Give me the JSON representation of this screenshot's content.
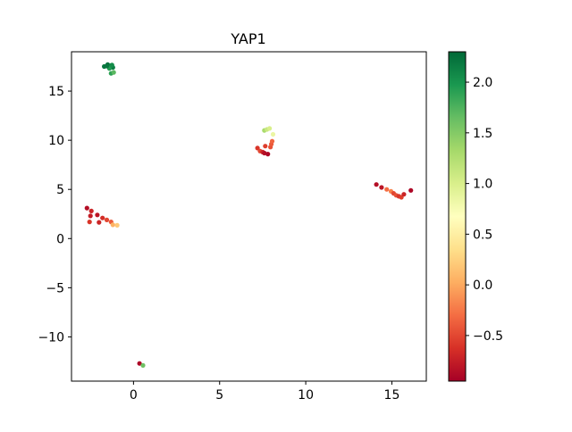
{
  "chart_data": {
    "type": "scatter",
    "title": "YAP1",
    "xlabel": "",
    "ylabel": "",
    "xlim": [
      -3.6,
      17.0
    ],
    "ylim": [
      -14.5,
      19.0
    ],
    "xticks": [
      0,
      5,
      10,
      15
    ],
    "yticks": [
      -10,
      -5,
      0,
      5,
      10,
      15
    ],
    "xtick_labels": [
      "0",
      "5",
      "10",
      "15"
    ],
    "ytick_labels": [
      "−10",
      "−5",
      "0",
      "5",
      "10",
      "15"
    ],
    "grid": false,
    "colorbar": {
      "colormap": "RdYlGn",
      "vmin": -0.95,
      "vmax": 2.3,
      "ticks": [
        -0.5,
        0.0,
        0.5,
        1.0,
        1.5,
        2.0
      ],
      "tick_labels": [
        "−0.5",
        "0.0",
        "0.5",
        "1.0",
        "1.5",
        "2.0"
      ]
    },
    "points": [
      {
        "x": -1.7,
        "y": 17.5,
        "v": 2.2
      },
      {
        "x": -1.5,
        "y": 17.7,
        "v": 2.25
      },
      {
        "x": -1.3,
        "y": 17.6,
        "v": 2.1
      },
      {
        "x": -1.2,
        "y": 17.4,
        "v": 2.15
      },
      {
        "x": -1.4,
        "y": 17.3,
        "v": 1.95
      },
      {
        "x": -1.3,
        "y": 16.8,
        "v": 1.9
      },
      {
        "x": -1.15,
        "y": 16.9,
        "v": 1.7
      },
      {
        "x": -1.25,
        "y": 17.65,
        "v": 2.05
      },
      {
        "x": -1.55,
        "y": 17.55,
        "v": 2.2
      },
      {
        "x": 7.6,
        "y": 11.0,
        "v": 1.3
      },
      {
        "x": 7.75,
        "y": 11.1,
        "v": 1.1
      },
      {
        "x": 7.9,
        "y": 11.2,
        "v": 1.0
      },
      {
        "x": 8.1,
        "y": 10.6,
        "v": 0.85
      },
      {
        "x": 7.2,
        "y": 9.2,
        "v": -0.6
      },
      {
        "x": 7.35,
        "y": 8.9,
        "v": -0.5
      },
      {
        "x": 7.5,
        "y": 8.8,
        "v": -0.7
      },
      {
        "x": 7.6,
        "y": 8.7,
        "v": -0.85
      },
      {
        "x": 7.8,
        "y": 8.6,
        "v": -0.9
      },
      {
        "x": 7.65,
        "y": 9.4,
        "v": -0.55
      },
      {
        "x": 7.95,
        "y": 9.3,
        "v": -0.45
      },
      {
        "x": 8.0,
        "y": 9.6,
        "v": -0.4
      },
      {
        "x": 8.05,
        "y": 9.9,
        "v": -0.35
      },
      {
        "x": 14.1,
        "y": 5.5,
        "v": -0.85
      },
      {
        "x": 14.4,
        "y": 5.2,
        "v": -0.8
      },
      {
        "x": 14.7,
        "y": 5.0,
        "v": -0.3
      },
      {
        "x": 14.95,
        "y": 4.8,
        "v": -0.2
      },
      {
        "x": 15.1,
        "y": 4.6,
        "v": -0.5
      },
      {
        "x": 15.25,
        "y": 4.4,
        "v": -0.45
      },
      {
        "x": 15.4,
        "y": 4.3,
        "v": -0.6
      },
      {
        "x": 15.55,
        "y": 4.2,
        "v": -0.55
      },
      {
        "x": 15.7,
        "y": 4.5,
        "v": -0.7
      },
      {
        "x": 16.1,
        "y": 4.9,
        "v": -0.9
      },
      {
        "x": -2.7,
        "y": 3.1,
        "v": -0.85
      },
      {
        "x": -2.45,
        "y": 2.8,
        "v": -0.7
      },
      {
        "x": -2.5,
        "y": 2.3,
        "v": -0.75
      },
      {
        "x": -2.1,
        "y": 2.4,
        "v": -0.8
      },
      {
        "x": -1.8,
        "y": 2.1,
        "v": -0.65
      },
      {
        "x": -1.55,
        "y": 1.9,
        "v": -0.5
      },
      {
        "x": -1.3,
        "y": 1.7,
        "v": -0.4
      },
      {
        "x": -2.55,
        "y": 1.7,
        "v": -0.6
      },
      {
        "x": -2.0,
        "y": 1.65,
        "v": -0.7
      },
      {
        "x": -1.2,
        "y": 1.4,
        "v": 0.05
      },
      {
        "x": -0.95,
        "y": 1.35,
        "v": 0.2
      },
      {
        "x": 0.35,
        "y": -12.7,
        "v": -0.9
      },
      {
        "x": 0.55,
        "y": -12.9,
        "v": 1.6
      }
    ]
  }
}
